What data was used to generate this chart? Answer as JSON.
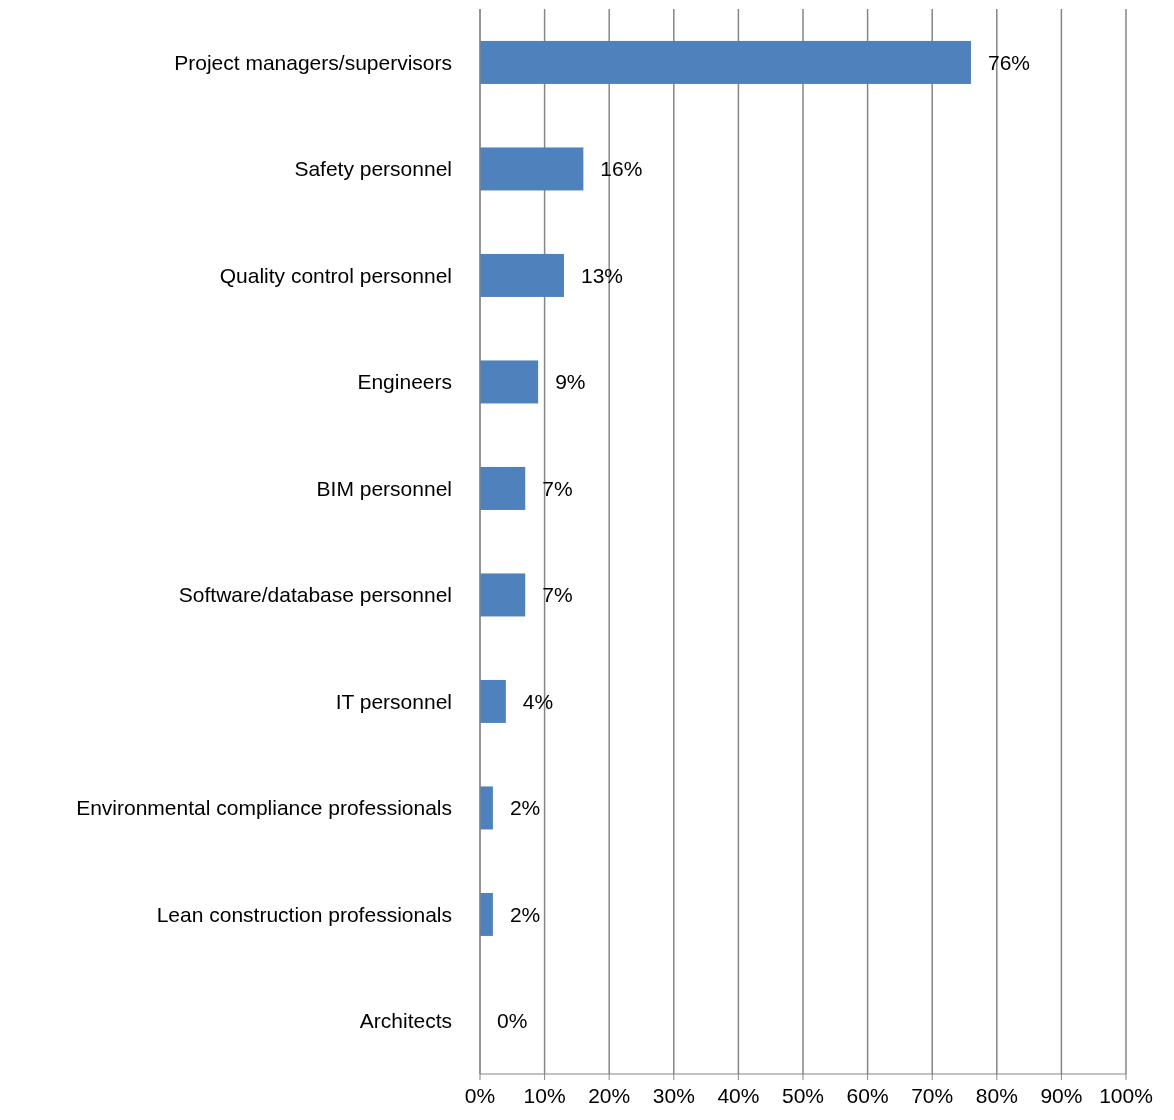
{
  "chart_data": {
    "type": "bar",
    "orientation": "horizontal",
    "categories": [
      "Project managers/supervisors",
      "Safety personnel",
      "Quality control personnel",
      "Engineers",
      "BIM personnel",
      "Software/database personnel",
      "IT personnel",
      "Environmental compliance professionals",
      "Lean construction professionals",
      "Architects"
    ],
    "values": [
      76,
      16,
      13,
      9,
      7,
      7,
      4,
      2,
      2,
      0
    ],
    "value_labels": [
      "76%",
      "16%",
      "13%",
      "9%",
      "7%",
      "7%",
      "4%",
      "2%",
      "2%",
      "0%"
    ],
    "color": "#4f81bd",
    "xlim": [
      0,
      100
    ],
    "xticks": [
      {
        "value": 0,
        "label": "0%"
      },
      {
        "value": 10,
        "label": "10%"
      },
      {
        "value": 20,
        "label": "20%"
      },
      {
        "value": 30,
        "label": "30%"
      },
      {
        "value": 40,
        "label": "40%"
      },
      {
        "value": 50,
        "label": "50%"
      },
      {
        "value": 60,
        "label": "60%"
      },
      {
        "value": 70,
        "label": "70%"
      },
      {
        "value": 80,
        "label": "80%"
      },
      {
        "value": 90,
        "label": "90%"
      },
      {
        "value": 100,
        "label": "100%"
      }
    ],
    "grid": "x"
  }
}
